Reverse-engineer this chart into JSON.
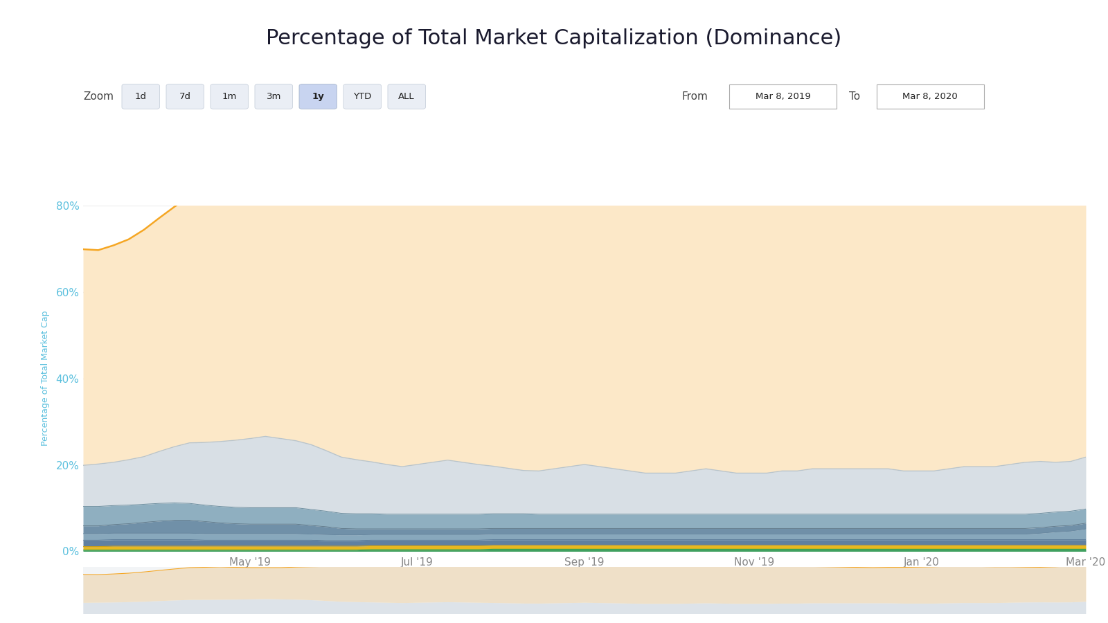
{
  "title": "Percentage of Total Market Capitalization (Dominance)",
  "ylabel": "Percentage of Total Market Cap",
  "background_color": "#ffffff",
  "title_fontsize": 22,
  "x_labels": [
    "May '19",
    "Jul '19",
    "Sep '19",
    "Nov '19",
    "Jan '20",
    "Mar '20"
  ],
  "x_positions": [
    61,
    122,
    183,
    245,
    306,
    366
  ],
  "yticks": [
    0,
    20,
    40,
    60,
    80
  ],
  "ytick_labels": [
    "0%",
    "20%",
    "40%",
    "60%",
    "80%"
  ],
  "ylim": [
    0,
    80
  ],
  "zoom_bar_labels": [
    "1d",
    "7d",
    "1m",
    "3m",
    "1y",
    "YTD",
    "ALL"
  ],
  "zoom_active": "1y",
  "from_label": "Mar 8, 2019",
  "to_label": "Mar 8, 2020",
  "btc_values": [
    50.0,
    49.5,
    50.2,
    51.0,
    52.5,
    54.0,
    55.5,
    57.0,
    57.5,
    58.0,
    57.0,
    56.0,
    55.5,
    56.0,
    57.5,
    59.0,
    61.0,
    63.0,
    64.5,
    65.5,
    66.0,
    65.0,
    64.5,
    63.5,
    64.0,
    65.5,
    66.5,
    67.0,
    68.0,
    68.5,
    69.0,
    68.5,
    67.5,
    67.0,
    66.5,
    67.0,
    67.5,
    68.0,
    67.0,
    66.5,
    66.0,
    65.5,
    66.0,
    66.5,
    67.0,
    66.5,
    66.0,
    65.5,
    65.0,
    64.5,
    64.0,
    63.5,
    63.0,
    63.5,
    64.0,
    64.5,
    65.0,
    65.5,
    65.0,
    64.5,
    64.0,
    63.5,
    62.5,
    62.0,
    63.0,
    64.5,
    65.5
  ],
  "eth_values": [
    9.5,
    9.8,
    10.0,
    10.5,
    11.0,
    12.0,
    13.0,
    14.0,
    14.5,
    15.0,
    15.5,
    16.0,
    16.5,
    16.0,
    15.5,
    15.0,
    14.0,
    13.0,
    12.5,
    12.0,
    11.5,
    11.0,
    11.5,
    12.0,
    12.5,
    12.0,
    11.5,
    11.0,
    10.5,
    10.0,
    10.0,
    10.5,
    11.0,
    11.5,
    11.0,
    10.5,
    10.0,
    9.5,
    9.5,
    9.5,
    10.0,
    10.5,
    10.0,
    9.5,
    9.5,
    9.5,
    10.0,
    10.0,
    10.5,
    10.5,
    10.5,
    10.5,
    10.5,
    10.5,
    10.0,
    10.0,
    10.0,
    10.5,
    11.0,
    11.0,
    11.0,
    11.5,
    12.0,
    12.0,
    11.5,
    11.5,
    12.0
  ],
  "xrp_values": [
    4.5,
    4.5,
    4.4,
    4.3,
    4.2,
    4.1,
    4.0,
    3.9,
    3.8,
    3.8,
    3.8,
    3.8,
    3.8,
    3.8,
    3.8,
    3.7,
    3.6,
    3.5,
    3.5,
    3.5,
    3.4,
    3.4,
    3.4,
    3.4,
    3.4,
    3.4,
    3.4,
    3.4,
    3.4,
    3.4,
    3.3,
    3.3,
    3.3,
    3.3,
    3.3,
    3.3,
    3.3,
    3.3,
    3.3,
    3.3,
    3.3,
    3.3,
    3.3,
    3.3,
    3.3,
    3.3,
    3.3,
    3.3,
    3.3,
    3.3,
    3.3,
    3.3,
    3.3,
    3.3,
    3.3,
    3.3,
    3.3,
    3.3,
    3.3,
    3.3,
    3.3,
    3.3,
    3.3,
    3.3,
    3.3,
    3.3,
    3.3
  ],
  "ltc_values": [
    1.8,
    1.8,
    2.0,
    2.2,
    2.5,
    2.8,
    3.0,
    3.0,
    2.8,
    2.5,
    2.3,
    2.2,
    2.2,
    2.2,
    2.2,
    2.0,
    1.8,
    1.5,
    1.4,
    1.3,
    1.3,
    1.3,
    1.3,
    1.3,
    1.3,
    1.3,
    1.3,
    1.3,
    1.3,
    1.3,
    1.3,
    1.3,
    1.3,
    1.3,
    1.3,
    1.3,
    1.3,
    1.3,
    1.3,
    1.3,
    1.3,
    1.3,
    1.3,
    1.3,
    1.3,
    1.3,
    1.3,
    1.3,
    1.3,
    1.3,
    1.3,
    1.3,
    1.3,
    1.3,
    1.3,
    1.3,
    1.3,
    1.3,
    1.3,
    1.3,
    1.3,
    1.3,
    1.3,
    1.3,
    1.3,
    1.3,
    1.3
  ],
  "bch_values": [
    1.5,
    1.5,
    1.5,
    1.5,
    1.5,
    1.5,
    1.5,
    1.5,
    1.5,
    1.5,
    1.5,
    1.5,
    1.5,
    1.5,
    1.5,
    1.4,
    1.4,
    1.3,
    1.3,
    1.3,
    1.3,
    1.3,
    1.3,
    1.3,
    1.3,
    1.3,
    1.3,
    1.3,
    1.3,
    1.3,
    1.3,
    1.3,
    1.3,
    1.3,
    1.3,
    1.3,
    1.3,
    1.3,
    1.3,
    1.3,
    1.3,
    1.3,
    1.3,
    1.3,
    1.3,
    1.3,
    1.3,
    1.3,
    1.3,
    1.3,
    1.3,
    1.3,
    1.3,
    1.3,
    1.3,
    1.3,
    1.3,
    1.3,
    1.3,
    1.3,
    1.3,
    1.3,
    1.3,
    1.5,
    1.8,
    2.0,
    2.5
  ],
  "eos_values": [
    1.5,
    1.5,
    1.5,
    1.5,
    1.5,
    1.5,
    1.5,
    1.5,
    1.4,
    1.4,
    1.4,
    1.4,
    1.4,
    1.4,
    1.4,
    1.4,
    1.3,
    1.3,
    1.3,
    1.3,
    1.3,
    1.3,
    1.3,
    1.3,
    1.3,
    1.3,
    1.3,
    1.3,
    1.3,
    1.3,
    1.3,
    1.3,
    1.3,
    1.3,
    1.3,
    1.3,
    1.3,
    1.3,
    1.3,
    1.3,
    1.3,
    1.3,
    1.3,
    1.3,
    1.3,
    1.3,
    1.3,
    1.3,
    1.3,
    1.3,
    1.3,
    1.3,
    1.3,
    1.3,
    1.3,
    1.3,
    1.3,
    1.3,
    1.3,
    1.3,
    1.3,
    1.3,
    1.3,
    1.3,
    1.3,
    1.3,
    1.3
  ],
  "bnb_values": [
    0.8,
    0.8,
    0.9,
    0.9,
    0.9,
    0.9,
    0.9,
    0.9,
    0.9,
    0.9,
    0.9,
    0.9,
    0.9,
    0.9,
    0.9,
    0.9,
    0.9,
    0.9,
    0.9,
    0.9,
    0.9,
    0.9,
    0.9,
    0.9,
    0.9,
    0.9,
    0.9,
    0.9,
    0.9,
    0.9,
    0.9,
    0.9,
    0.9,
    0.9,
    0.9,
    0.9,
    0.9,
    0.9,
    0.9,
    0.9,
    0.9,
    0.9,
    0.9,
    0.9,
    0.9,
    0.9,
    0.9,
    0.9,
    0.9,
    0.9,
    0.9,
    0.9,
    0.9,
    0.9,
    0.9,
    0.9,
    0.9,
    0.9,
    0.9,
    0.9,
    0.9,
    0.9,
    0.9,
    0.9,
    0.9,
    0.9,
    0.9
  ],
  "usdt_values": [
    0.3,
    0.3,
    0.3,
    0.3,
    0.3,
    0.3,
    0.3,
    0.3,
    0.3,
    0.3,
    0.3,
    0.3,
    0.3,
    0.3,
    0.3,
    0.3,
    0.3,
    0.3,
    0.3,
    0.4,
    0.4,
    0.4,
    0.4,
    0.4,
    0.4,
    0.4,
    0.4,
    0.5,
    0.5,
    0.5,
    0.5,
    0.5,
    0.5,
    0.5,
    0.5,
    0.5,
    0.5,
    0.5,
    0.5,
    0.5,
    0.5,
    0.5,
    0.5,
    0.5,
    0.5,
    0.5,
    0.5,
    0.5,
    0.5,
    0.5,
    0.5,
    0.5,
    0.5,
    0.5,
    0.5,
    0.5,
    0.5,
    0.5,
    0.5,
    0.5,
    0.5,
    0.5,
    0.5,
    0.5,
    0.5,
    0.5,
    0.5
  ],
  "btc_line_color": "#f5a623",
  "btc_fill_color": "#fce8c8",
  "eth_line_color": "#b8c4cc",
  "eth_fill_color": "#d8dfe5",
  "xrp_fill_color": "#8fafc0",
  "ltc_fill_color": "#7090a8",
  "bch_fill_color": "#88a8bc",
  "eos_fill_color": "#6080a0",
  "bnb_fill_color": "#e8b820",
  "usdt_fill_color": "#40a060",
  "small_fills": [
    "#4a6888",
    "#506878",
    "#c8b44a",
    "#58a070",
    "#808890"
  ],
  "grid_color": "#ebebeb",
  "label_color": "#5bc0de",
  "tick_color": "#888888"
}
